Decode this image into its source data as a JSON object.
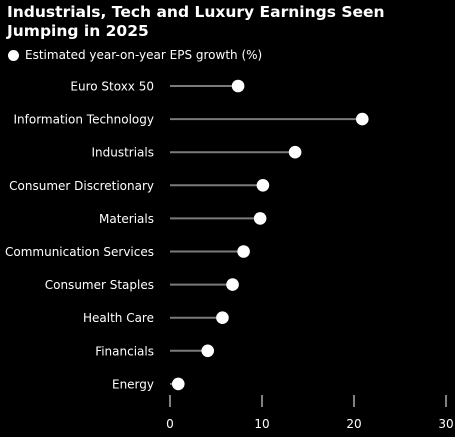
{
  "chart_data": {
    "type": "dot",
    "title": "Industrials, Tech and Luxury Earnings Seen Jumping in 2025",
    "legend": "Estimated year-on-year EPS growth (%)",
    "categories": [
      "Euro Stoxx 50",
      "Information Technology",
      "Industrials",
      "Consumer Discretionary",
      "Materials",
      "Communication Services",
      "Consumer Staples",
      "Health Care",
      "Financials",
      "Energy"
    ],
    "values": [
      7.4,
      20.9,
      13.6,
      10.1,
      9.8,
      8.0,
      6.8,
      5.7,
      4.1,
      0.9
    ],
    "xlim": [
      0,
      30
    ],
    "xticks": [
      0,
      10,
      20,
      30
    ],
    "colors": {
      "background": "#000000",
      "dot": "#ffffff",
      "stem": "#7a7a7a",
      "axis": "#ffffff"
    }
  }
}
